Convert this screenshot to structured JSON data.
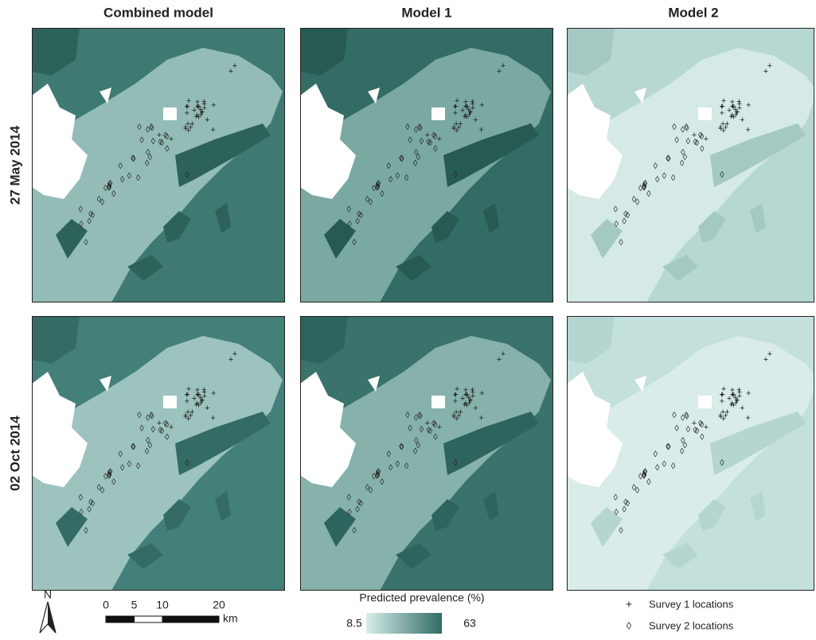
{
  "columns": [
    "Combined model",
    "Model 1",
    "Model 2"
  ],
  "rows": [
    "27 May 2014",
    "02 Oct 2014"
  ],
  "north": "N",
  "scale_bar": {
    "ticks": [
      0,
      5,
      10,
      20
    ],
    "unit": "km"
  },
  "legend": {
    "title": "Predicted prevalence (%)",
    "min": 8.5,
    "max": 63,
    "items": [
      "Survey 1 locations",
      "Survey 2 locations"
    ]
  }
}
